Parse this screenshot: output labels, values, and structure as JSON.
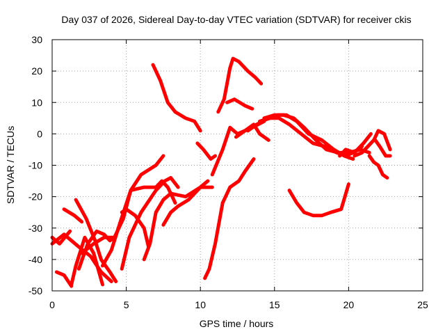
{
  "chart_data": {
    "type": "line",
    "title": "Day 037 of 2026, Sidereal Day-to-day VTEC variation (SDTVAR) for receiver ckis",
    "xlabel": "GPS time / hours",
    "ylabel": "SDTVAR / TECUs",
    "xlim": [
      0,
      25
    ],
    "ylim": [
      -50,
      30
    ],
    "xticks": [
      0,
      5,
      10,
      15,
      20,
      25
    ],
    "yticks": [
      -50,
      -40,
      -30,
      -20,
      -10,
      0,
      10,
      20,
      30
    ],
    "xtick_labels": [
      "0",
      "5",
      "10",
      "15",
      "20",
      "25"
    ],
    "ytick_labels": [
      "-50",
      "-40",
      "-30",
      "-20",
      "-10",
      "0",
      "10",
      "20",
      "30"
    ],
    "grid": true,
    "legend": "none",
    "series_color": "#ff0000",
    "series": [
      {
        "x": [
          0.3,
          0.8,
          1.3
        ],
        "y": [
          -44,
          -45,
          -48.5
        ]
      },
      {
        "x": [
          0.0,
          0.5,
          1.2
        ],
        "y": [
          -33,
          -35,
          -31
        ]
      },
      {
        "x": [
          0.8,
          1.5,
          2.0
        ],
        "y": [
          -24,
          -26,
          -28
        ]
      },
      {
        "x": [
          1.6,
          2.3,
          2.9,
          3.3,
          3.9,
          4.3
        ],
        "y": [
          -21,
          -27,
          -34,
          -40,
          -44,
          -47
        ]
      },
      {
        "x": [
          0.0,
          0.8,
          1.8,
          2.6,
          3.3,
          4.0
        ],
        "y": [
          -35,
          -32,
          -36,
          -39,
          -44,
          -47
        ]
      },
      {
        "x": [
          1.3,
          1.6,
          2.2,
          2.8,
          3.4
        ],
        "y": [
          -48,
          -42,
          -33,
          -38,
          -48
        ]
      },
      {
        "x": [
          1.8,
          2.4,
          3.0,
          3.5,
          3.9,
          4.2
        ],
        "y": [
          -43,
          -35,
          -31,
          -32,
          -34,
          -33
        ]
      },
      {
        "x": [
          2.0,
          2.8,
          3.5,
          4.2,
          4.8,
          5.3,
          6.0,
          7.0,
          7.5
        ],
        "y": [
          -38,
          -35,
          -33,
          -33,
          -27,
          -18,
          -13,
          -10,
          -7
        ]
      },
      {
        "x": [
          3.4,
          4.0,
          4.6,
          5.3,
          6.2,
          7.0,
          7.4,
          7.8,
          8.3
        ],
        "y": [
          -42,
          -37,
          -28,
          -18,
          -17,
          -17,
          -15,
          -17,
          -22
        ]
      },
      {
        "x": [
          4.7,
          5.0,
          5.6,
          6.2,
          6.5
        ],
        "y": [
          -25,
          -24,
          -26,
          -30,
          -36
        ]
      },
      {
        "x": [
          4.7,
          5.2,
          6.0,
          7.0,
          7.6,
          8.0,
          8.5
        ],
        "y": [
          -43,
          -33,
          -25,
          -18,
          -15,
          -14,
          -17
        ]
      },
      {
        "x": [
          6.2,
          6.6,
          7.0,
          7.5,
          8.0,
          9.0,
          10.0,
          10.5
        ],
        "y": [
          -40,
          -35,
          -25,
          -21,
          -19,
          -20,
          -17,
          -15
        ]
      },
      {
        "x": [
          7.5,
          8.0,
          8.5,
          9.2,
          10.0,
          10.8
        ],
        "y": [
          -29,
          -25,
          -23,
          -21,
          -17,
          -17
        ]
      },
      {
        "x": [
          6.8,
          7.3,
          7.8,
          8.3,
          9.0,
          9.6,
          10.0
        ],
        "y": [
          22,
          17,
          10,
          7,
          5,
          4,
          1
        ]
      },
      {
        "x": [
          9.8,
          10.2,
          10.7,
          11.0
        ],
        "y": [
          -3,
          -5,
          -8,
          -7
        ]
      },
      {
        "x": [
          10.3,
          10.6,
          11.0,
          11.5,
          12.0,
          12.6,
          13.0,
          13.6
        ],
        "y": [
          -46,
          -43,
          -35,
          -22,
          -17,
          -15,
          -12,
          -8
        ]
      },
      {
        "x": [
          10.8,
          11.5,
          12.0,
          12.5,
          13.5,
          14.3
        ],
        "y": [
          -13,
          -5,
          2,
          0,
          2,
          4
        ]
      },
      {
        "x": [
          11.2,
          11.6,
          12.0,
          12.2,
          12.6,
          13.2,
          13.7,
          14.1
        ],
        "y": [
          7,
          11,
          21,
          24,
          23,
          20,
          18,
          16
        ]
      },
      {
        "x": [
          11.8,
          12.3,
          13.0,
          13.5
        ],
        "y": [
          10,
          11,
          9,
          8
        ]
      },
      {
        "x": [
          12.4,
          13.0,
          13.6,
          14.0,
          14.6
        ],
        "y": [
          -1,
          1,
          3,
          0,
          -2
        ]
      },
      {
        "x": [
          13.2,
          13.8,
          14.6,
          15.2,
          15.8,
          16.5,
          17.3,
          18.2,
          19.0,
          19.7,
          20.3
        ],
        "y": [
          1,
          3,
          5,
          6,
          6,
          4,
          0,
          -2,
          -5,
          -7,
          -8
        ]
      },
      {
        "x": [
          14.0,
          14.7,
          15.3,
          16.0,
          16.8,
          17.6,
          18.4,
          19.2,
          19.8,
          20.3,
          20.9
        ],
        "y": [
          4,
          5,
          5,
          3,
          0,
          -3,
          -4,
          -6,
          -7,
          -6,
          -4
        ]
      },
      {
        "x": [
          14.3,
          15.0,
          15.6,
          16.3,
          17.0,
          17.8,
          18.5,
          19.3,
          20.0,
          20.8,
          21.4
        ],
        "y": [
          5,
          6,
          6,
          5,
          2,
          -2,
          -5,
          -6,
          -6,
          -5,
          -6
        ]
      },
      {
        "x": [
          16.0,
          16.5,
          17.0,
          17.6,
          18.2,
          18.8,
          19.5,
          20.0
        ],
        "y": [
          -18,
          -22,
          -25,
          -26,
          -26,
          -25,
          -24,
          -16
        ]
      },
      {
        "x": [
          19.4,
          19.8,
          20.4,
          21.0,
          21.5
        ],
        "y": [
          -7,
          -5,
          -6,
          -3,
          0
        ]
      },
      {
        "x": [
          20.4,
          20.9,
          21.3,
          21.7,
          22.0,
          22.4,
          22.8
        ],
        "y": [
          -7,
          -6,
          -4,
          -2,
          1,
          0,
          -5
        ]
      },
      {
        "x": [
          21.4,
          21.7,
          22.0,
          22.3,
          22.6
        ],
        "y": [
          -7,
          -9,
          -10,
          -13,
          -14
        ]
      },
      {
        "x": [
          21.8,
          22.1,
          22.5,
          22.8
        ],
        "y": [
          -2,
          -4,
          -7,
          -7
        ]
      }
    ]
  }
}
